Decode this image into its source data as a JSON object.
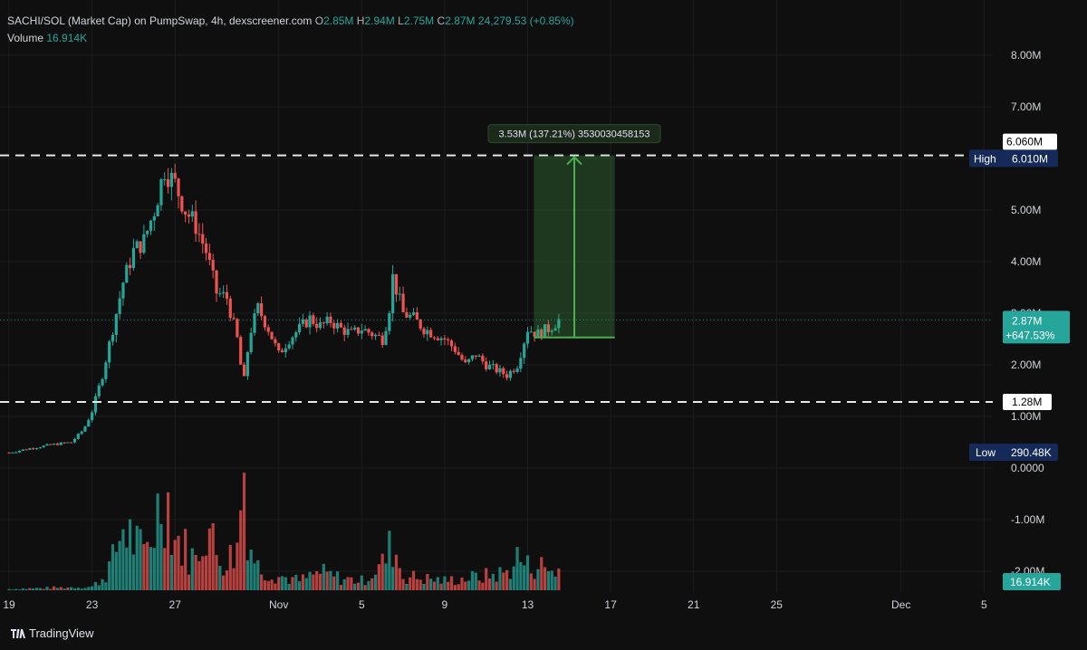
{
  "header": {
    "symbol": "SACHI/SOL (Market Cap) on PumpSwap, 4h, dexscreener.com",
    "o_label": "O",
    "o_value": "2.85M",
    "h_label": "H",
    "h_value": "2.94M",
    "l_label": "L",
    "l_value": "2.75M",
    "c_label": "C",
    "c_value": "2.87M",
    "change": "24,279.53 (+0.85%)"
  },
  "volume": {
    "label": "Volume",
    "value": "16.914K"
  },
  "branding": {
    "name": "TradingView"
  },
  "measure": {
    "label": "3.53M (137.21%) 3530030458153"
  },
  "badges": {
    "top_level": "6.060M",
    "high_label": "High",
    "high_value": "6.010M",
    "current_price": "2.87M",
    "current_change": "+647.53%",
    "level_low": "1.28M",
    "low_label": "Low",
    "low_value": "290.48K",
    "volume": "16.914K"
  },
  "colors": {
    "up": "#26a69a",
    "down": "#ef5350",
    "measure": "#4caf50",
    "high_badge": "#162a5a"
  },
  "chart_data": {
    "type": "candlestick",
    "y_axis": {
      "ticks": [
        "8.00M",
        "7.00M",
        "6.00M",
        "5.00M",
        "4.00M",
        "3.00M",
        "2.00M",
        "1.00M",
        "0.0000",
        "-1.00M",
        "-2.00M"
      ],
      "values": [
        8,
        7,
        6,
        5,
        4,
        3,
        2,
        1,
        0,
        -1,
        -2
      ],
      "unit": "M"
    },
    "x_axis": {
      "ticks": [
        "19",
        "23",
        "27",
        "Nov",
        "5",
        "9",
        "13",
        "17",
        "21",
        "25",
        "Dec",
        "5"
      ],
      "day_index": [
        0,
        4,
        8,
        13,
        17,
        21,
        25,
        29,
        33,
        37,
        43,
        47
      ]
    },
    "horizontal_levels": [
      6.06,
      1.28
    ],
    "high": 6.01,
    "low": 0.29048,
    "last_close": 2.87,
    "close_path": [
      [
        0.0,
        0.3
      ],
      [
        1.0,
        0.38
      ],
      [
        2.0,
        0.45
      ],
      [
        3.0,
        0.5
      ],
      [
        3.6,
        0.75
      ],
      [
        4.0,
        1.1
      ],
      [
        4.5,
        1.8
      ],
      [
        5.0,
        2.7
      ],
      [
        5.5,
        3.6
      ],
      [
        6.0,
        4.2
      ],
      [
        6.5,
        4.4
      ],
      [
        7.0,
        5.0
      ],
      [
        7.5,
        5.8
      ],
      [
        8.0,
        5.5
      ],
      [
        8.5,
        5.0
      ],
      [
        9.0,
        4.7
      ],
      [
        9.5,
        4.2
      ],
      [
        10.0,
        3.4
      ],
      [
        10.5,
        3.3
      ],
      [
        11.0,
        2.5
      ],
      [
        11.3,
        1.6
      ],
      [
        11.6,
        2.6
      ],
      [
        12.0,
        3.1
      ],
      [
        12.5,
        2.7
      ],
      [
        13.0,
        2.2
      ],
      [
        13.5,
        2.5
      ],
      [
        14.0,
        2.7
      ],
      [
        14.5,
        2.9
      ],
      [
        15.0,
        2.75
      ],
      [
        15.5,
        2.85
      ],
      [
        16.0,
        2.7
      ],
      [
        16.5,
        2.6
      ],
      [
        17.0,
        2.7
      ],
      [
        17.5,
        2.6
      ],
      [
        18.0,
        2.5
      ],
      [
        18.3,
        3.0
      ],
      [
        18.5,
        3.7
      ],
      [
        19.0,
        3.0
      ],
      [
        19.5,
        2.9
      ],
      [
        20.0,
        2.7
      ],
      [
        20.5,
        2.6
      ],
      [
        21.0,
        2.5
      ],
      [
        21.5,
        2.3
      ],
      [
        22.0,
        2.0
      ],
      [
        22.5,
        2.2
      ],
      [
        23.0,
        2.0
      ],
      [
        23.5,
        1.9
      ],
      [
        24.0,
        1.8
      ],
      [
        24.5,
        2.0
      ],
      [
        25.0,
        2.7
      ],
      [
        25.5,
        2.6
      ],
      [
        26.0,
        2.7
      ],
      [
        26.5,
        2.87
      ]
    ],
    "volume_unit": "K",
    "volume_path": [
      [
        0,
        1
      ],
      [
        2,
        2
      ],
      [
        4,
        3
      ],
      [
        4.5,
        10
      ],
      [
        5,
        25
      ],
      [
        5.5,
        55
      ],
      [
        6,
        42
      ],
      [
        6.5,
        30
      ],
      [
        7,
        55
      ],
      [
        7.5,
        90
      ],
      [
        8,
        45
      ],
      [
        8.5,
        35
      ],
      [
        9,
        25
      ],
      [
        9.5,
        60
      ],
      [
        10,
        30
      ],
      [
        10.5,
        25
      ],
      [
        11,
        35
      ],
      [
        11.3,
        110
      ],
      [
        11.6,
        40
      ],
      [
        12,
        20
      ],
      [
        13,
        12
      ],
      [
        14,
        8
      ],
      [
        15,
        15
      ],
      [
        16,
        10
      ],
      [
        17,
        8
      ],
      [
        18,
        22
      ],
      [
        18.5,
        40
      ],
      [
        19,
        12
      ],
      [
        20,
        10
      ],
      [
        21,
        8
      ],
      [
        22,
        10
      ],
      [
        23,
        12
      ],
      [
        24,
        15
      ],
      [
        24.5,
        28
      ],
      [
        25,
        20
      ],
      [
        25.5,
        22
      ],
      [
        26,
        16.914
      ]
    ],
    "measure": {
      "from": 2.53,
      "to": 6.06,
      "day_from": 25.3,
      "day_to": 29.2,
      "label": "3.53M (137.21%) 3530030458153"
    }
  }
}
